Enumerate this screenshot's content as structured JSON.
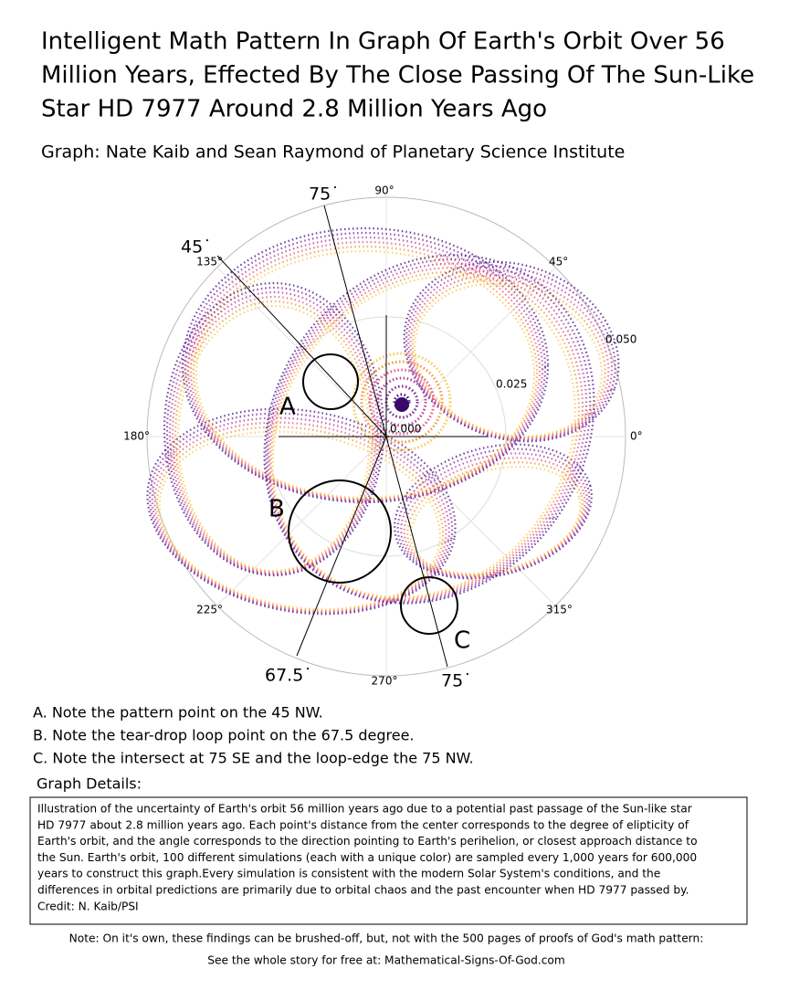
{
  "title_lines": [
    "Intelligent Math Pattern In Graph Of Earth's Orbit Over 56",
    "Million Years, Effected By The Close Passing Of The Sun-Like",
    "Star HD 7977 Around 2.8 Million Years Ago"
  ],
  "subtitle": "Graph: Nate Kaib and Sean Raymond of Planetary Science Institute",
  "plot": {
    "angle_labels": [
      "0°",
      "45°",
      "90°",
      "135°",
      "180°",
      "225°",
      "270°",
      "315°"
    ],
    "radial_labels": [
      "0.000",
      "0.025",
      "0.050"
    ],
    "angle_marks": [
      "75˙",
      "45˙",
      "67.5˙",
      "75˙"
    ],
    "points": [
      "A",
      "B",
      "C"
    ]
  },
  "notes": [
    "A. Note the pattern point on the 45 NW.",
    "B. Note the tear-drop loop point on the 67.5 degree.",
    "C. Note the intersect at 75 SE and the loop-edge the 75 NW."
  ],
  "details_heading": "Graph Details:",
  "details_lines": [
    "Illustration of the uncertainty of Earth's orbit 56 million years ago due to a potential past passage of the Sun-like star",
    "HD 7977 about 2.8 million years ago. Each point's distance from the center corresponds to the degree of elipticity of",
    "Earth's orbit, and the angle corresponds to the direction pointing to Earth's perihelion, or closest approach distance to",
    "the Sun. Earth's orbit, 100 different simulations (each with a unique color) are sampled every 1,000 years for 600,000",
    "years to construct this graph.Every simulation is consistent with the modern Solar System's conditions, and the",
    "differences in orbital predictions are primarily due to orbital chaos and the past encounter when HD 7977 passed by.",
    "Credit: N. Kaib/PSI"
  ],
  "footer": [
    "Note: On it's own, these findings can be brushed-off, but, not with the 500 pages of proofs of God's math pattern:",
    "See the whole story for free at:  Mathematical-Signs-Of-God.com"
  ]
}
